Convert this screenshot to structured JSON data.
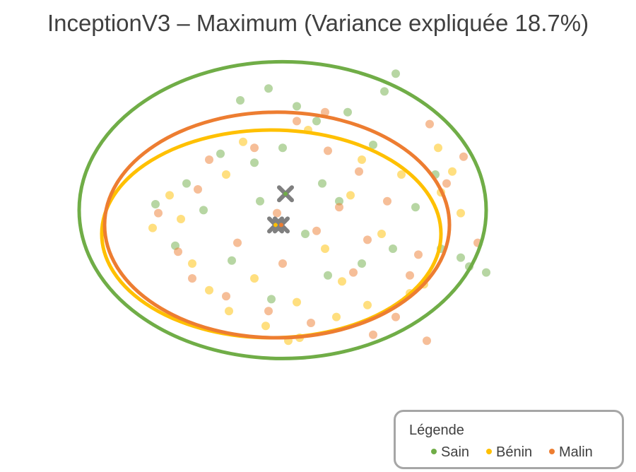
{
  "chart_data": {
    "type": "scatter",
    "title": "InceptionV3 – Maximum (Variance expliquée 18.7%)",
    "xlabel": "",
    "ylabel": "",
    "grid": false,
    "legend": {
      "title": "Légende",
      "placement": "bottom-right",
      "entries": [
        "Sain",
        "Bénin",
        "Malin"
      ]
    },
    "series": [
      {
        "name": "Sain",
        "color": "#70ad47",
        "centroid": {
          "x": 0.1,
          "y": 0.85
        },
        "ellipse": {
          "cx": 0.0,
          "cy": 0.3,
          "rx": 7.2,
          "ry": 5.0
        },
        "points": [
          {
            "x": -1.5,
            "y": 4.0
          },
          {
            "x": -0.5,
            "y": 4.4
          },
          {
            "x": 0.5,
            "y": 3.8
          },
          {
            "x": 1.2,
            "y": 3.3
          },
          {
            "x": 2.3,
            "y": 3.6
          },
          {
            "x": 3.6,
            "y": 4.3
          },
          {
            "x": 4.0,
            "y": 4.9
          },
          {
            "x": 5.4,
            "y": 1.5
          },
          {
            "x": 6.3,
            "y": -1.3
          },
          {
            "x": 7.2,
            "y": -1.8
          },
          {
            "x": 6.6,
            "y": -1.6
          },
          {
            "x": 5.6,
            "y": -1.0
          },
          {
            "x": -4.5,
            "y": 0.5
          },
          {
            "x": -3.8,
            "y": -0.9
          },
          {
            "x": -2.2,
            "y": 2.2
          },
          {
            "x": -1.0,
            "y": 1.9
          },
          {
            "x": 0.0,
            "y": 2.4
          },
          {
            "x": 1.4,
            "y": 1.2
          },
          {
            "x": 2.0,
            "y": 0.6
          },
          {
            "x": -0.8,
            "y": 0.6
          },
          {
            "x": -2.8,
            "y": 0.3
          },
          {
            "x": -3.4,
            "y": 1.2
          },
          {
            "x": 0.8,
            "y": -0.5
          },
          {
            "x": 2.8,
            "y": -1.5
          },
          {
            "x": 3.9,
            "y": -1.0
          },
          {
            "x": 1.6,
            "y": -1.9
          },
          {
            "x": -0.4,
            "y": -2.7
          },
          {
            "x": -1.8,
            "y": -1.4
          },
          {
            "x": 4.7,
            "y": 0.4
          },
          {
            "x": 3.2,
            "y": 2.5
          }
        ]
      },
      {
        "name": "Bénin",
        "color": "#ffc000",
        "centroid": {
          "x": -0.25,
          "y": -0.2
        },
        "ellipse": {
          "cx": -0.4,
          "cy": -0.5,
          "rx": 6.0,
          "ry": 3.5
        },
        "points": [
          {
            "x": -4.0,
            "y": 0.8
          },
          {
            "x": -3.2,
            "y": -1.5
          },
          {
            "x": -2.0,
            "y": 1.5
          },
          {
            "x": -1.0,
            "y": -2.0
          },
          {
            "x": 0.5,
            "y": -2.8
          },
          {
            "x": 1.5,
            "y": -1.0
          },
          {
            "x": 2.4,
            "y": 0.8
          },
          {
            "x": 3.5,
            "y": -0.5
          },
          {
            "x": 4.5,
            "y": -2.5
          },
          {
            "x": 5.0,
            "y": -2.2
          },
          {
            "x": 6.0,
            "y": 1.6
          },
          {
            "x": 6.3,
            "y": 0.2
          },
          {
            "x": 5.6,
            "y": 0.9
          },
          {
            "x": 0.6,
            "y": -4.0
          },
          {
            "x": 0.2,
            "y": -4.1
          },
          {
            "x": -0.6,
            "y": -3.6
          },
          {
            "x": -2.6,
            "y": -2.4
          },
          {
            "x": -1.4,
            "y": 2.6
          },
          {
            "x": 0.9,
            "y": 3.0
          },
          {
            "x": 2.8,
            "y": 2.0
          },
          {
            "x": -4.6,
            "y": -0.3
          },
          {
            "x": 3.0,
            "y": -2.9
          },
          {
            "x": 1.9,
            "y": -3.3
          },
          {
            "x": 4.2,
            "y": 1.5
          },
          {
            "x": -3.6,
            "y": 0.0
          },
          {
            "x": 5.5,
            "y": 2.4
          },
          {
            "x": -1.9,
            "y": -3.1
          },
          {
            "x": 2.1,
            "y": -2.1
          }
        ]
      },
      {
        "name": "Malin",
        "color": "#ed7d31",
        "centroid": {
          "x": -0.05,
          "y": -0.2
        },
        "ellipse": {
          "cx": -0.2,
          "cy": -0.2,
          "rx": 6.1,
          "ry": 3.8
        },
        "points": [
          {
            "x": -4.4,
            "y": 0.2
          },
          {
            "x": -3.0,
            "y": 1.0
          },
          {
            "x": -1.6,
            "y": -0.8
          },
          {
            "x": -0.2,
            "y": 0.2
          },
          {
            "x": 1.2,
            "y": -0.4
          },
          {
            "x": 2.5,
            "y": -1.8
          },
          {
            "x": 3.7,
            "y": 0.6
          },
          {
            "x": 4.8,
            "y": -1.2
          },
          {
            "x": 5.8,
            "y": 1.2
          },
          {
            "x": 6.9,
            "y": -0.8
          },
          {
            "x": 4.0,
            "y": -3.3
          },
          {
            "x": 3.2,
            "y": -3.9
          },
          {
            "x": 1.0,
            "y": -3.5
          },
          {
            "x": -0.5,
            "y": -3.1
          },
          {
            "x": -2.0,
            "y": -2.6
          },
          {
            "x": -3.7,
            "y": -1.1
          },
          {
            "x": -2.6,
            "y": 2.0
          },
          {
            "x": -1.0,
            "y": 2.4
          },
          {
            "x": 0.5,
            "y": 3.3
          },
          {
            "x": 1.6,
            "y": 2.3
          },
          {
            "x": 2.7,
            "y": 1.6
          },
          {
            "x": 5.2,
            "y": 3.2
          },
          {
            "x": 6.4,
            "y": 2.1
          },
          {
            "x": 5.1,
            "y": -4.1
          },
          {
            "x": 4.5,
            "y": -1.9
          },
          {
            "x": 0.0,
            "y": -1.5
          },
          {
            "x": -3.2,
            "y": -2.0
          },
          {
            "x": 2.0,
            "y": 0.4
          },
          {
            "x": 3.0,
            "y": -0.7
          },
          {
            "x": 1.5,
            "y": 3.6
          }
        ]
      }
    ]
  }
}
